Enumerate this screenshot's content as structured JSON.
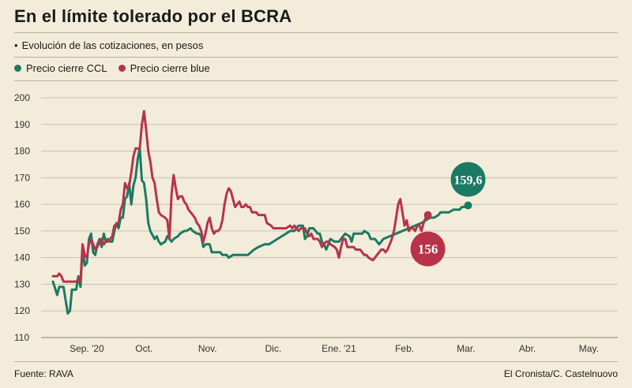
{
  "title": "En el límite tolerado por el BCRA",
  "subtitle": "Evolución de las cotizaciones, en pesos",
  "legend": [
    {
      "label": "Precio cierre CCL",
      "color": "#1b7a63"
    },
    {
      "label": "Precio cierre blue",
      "color": "#b8334a"
    }
  ],
  "footer": {
    "source": "Fuente: RAVA",
    "credit": "El Cronista/C. Castelnuovo"
  },
  "chart_data": {
    "type": "line",
    "title": "En el límite tolerado por el BCRA",
    "xlabel": "",
    "ylabel": "",
    "ylim": [
      110,
      200
    ],
    "yticks": [
      110,
      120,
      130,
      140,
      150,
      160,
      170,
      180,
      190,
      200
    ],
    "grid": true,
    "x_range": [
      0,
      251
    ],
    "month_labels": [
      {
        "label": "Sep. '20",
        "x": 16
      },
      {
        "label": "Oct.",
        "x": 43
      },
      {
        "label": "Nov.",
        "x": 73
      },
      {
        "label": "Dic.",
        "x": 104
      },
      {
        "label": "Ene. '21",
        "x": 135
      },
      {
        "label": "Feb.",
        "x": 166
      },
      {
        "label": "Mar.",
        "x": 195
      },
      {
        "label": "Abr.",
        "x": 224
      },
      {
        "label": "May.",
        "x": 253
      }
    ],
    "end_labels": {
      "ccl": "159,6",
      "blue": "156"
    },
    "series": [
      {
        "name": "Precio cierre CCL",
        "color": "#1b7a63",
        "points": [
          [
            0,
            131
          ],
          [
            2,
            126
          ],
          [
            3,
            129
          ],
          [
            5,
            129
          ],
          [
            6,
            124
          ],
          [
            7,
            119
          ],
          [
            8,
            120
          ],
          [
            9,
            128
          ],
          [
            11,
            128
          ],
          [
            12,
            133
          ],
          [
            13,
            129
          ],
          [
            14,
            144
          ],
          [
            15,
            137
          ],
          [
            16,
            138
          ],
          [
            17,
            147
          ],
          [
            18,
            149
          ],
          [
            19,
            142
          ],
          [
            20,
            141
          ],
          [
            21,
            145
          ],
          [
            22,
            147
          ],
          [
            23,
            144
          ],
          [
            24,
            149
          ],
          [
            25,
            146
          ],
          [
            26,
            147
          ],
          [
            27,
            146
          ],
          [
            28,
            146
          ],
          [
            29,
            150
          ],
          [
            30,
            153
          ],
          [
            31,
            151
          ],
          [
            32,
            155
          ],
          [
            33,
            155
          ],
          [
            34,
            162
          ],
          [
            35,
            163
          ],
          [
            36,
            168
          ],
          [
            37,
            160
          ],
          [
            38,
            167
          ],
          [
            39,
            170
          ],
          [
            40,
            177
          ],
          [
            41,
            181
          ],
          [
            42,
            169
          ],
          [
            43,
            168
          ],
          [
            44,
            162
          ],
          [
            45,
            153
          ],
          [
            46,
            150
          ],
          [
            48,
            147
          ],
          [
            49,
            148
          ],
          [
            50,
            146
          ],
          [
            51,
            145
          ],
          [
            53,
            146
          ],
          [
            54,
            148
          ],
          [
            56,
            146
          ],
          [
            57,
            147
          ],
          [
            59,
            148
          ],
          [
            60,
            149
          ],
          [
            62,
            150
          ],
          [
            63,
            150
          ],
          [
            65,
            151
          ],
          [
            66,
            150
          ],
          [
            68,
            149
          ],
          [
            69,
            149
          ],
          [
            70,
            148
          ],
          [
            71,
            144
          ],
          [
            72,
            145
          ],
          [
            74,
            145
          ],
          [
            75,
            142
          ],
          [
            77,
            142
          ],
          [
            79,
            142
          ],
          [
            80,
            141
          ],
          [
            82,
            141
          ],
          [
            83,
            140
          ],
          [
            85,
            141
          ],
          [
            90,
            141
          ],
          [
            92,
            141
          ],
          [
            95,
            143
          ],
          [
            97,
            144
          ],
          [
            100,
            145
          ],
          [
            102,
            145
          ],
          [
            104,
            146
          ],
          [
            106,
            147
          ],
          [
            108,
            148
          ],
          [
            110,
            149
          ],
          [
            112,
            150
          ],
          [
            114,
            150
          ],
          [
            115,
            151
          ],
          [
            116,
            152
          ],
          [
            118,
            152
          ],
          [
            119,
            147
          ],
          [
            120,
            148
          ],
          [
            121,
            151
          ],
          [
            123,
            151
          ],
          [
            125,
            149
          ],
          [
            126,
            149
          ],
          [
            127,
            146
          ],
          [
            128,
            145
          ],
          [
            129,
            143
          ],
          [
            130,
            145
          ],
          [
            131,
            147
          ],
          [
            133,
            146
          ],
          [
            135,
            146
          ],
          [
            137,
            148
          ],
          [
            138,
            149
          ],
          [
            140,
            148
          ],
          [
            141,
            146
          ],
          [
            142,
            149
          ],
          [
            144,
            149
          ],
          [
            146,
            149
          ],
          [
            147,
            150
          ],
          [
            149,
            149
          ],
          [
            150,
            147
          ],
          [
            152,
            147
          ],
          [
            154,
            145
          ],
          [
            155,
            146
          ],
          [
            156,
            147
          ],
          [
            159,
            148
          ],
          [
            162,
            149
          ],
          [
            165,
            150
          ],
          [
            168,
            151
          ],
          [
            171,
            152
          ],
          [
            174,
            153
          ],
          [
            176,
            154
          ],
          [
            178,
            155
          ],
          [
            180,
            155
          ],
          [
            182,
            156
          ],
          [
            183,
            157
          ],
          [
            185,
            157
          ],
          [
            187,
            157
          ],
          [
            189,
            158
          ],
          [
            190,
            158
          ],
          [
            192,
            158
          ],
          [
            193,
            159
          ],
          [
            195,
            159
          ],
          [
            196,
            159.6
          ]
        ]
      },
      {
        "name": "Precio cierre blue",
        "color": "#b8334a",
        "points": [
          [
            0,
            133
          ],
          [
            2,
            133
          ],
          [
            3,
            134
          ],
          [
            4,
            133
          ],
          [
            5,
            131
          ],
          [
            7,
            131
          ],
          [
            9,
            131
          ],
          [
            11,
            131
          ],
          [
            12,
            132
          ],
          [
            13,
            131
          ],
          [
            14,
            145
          ],
          [
            15,
            141
          ],
          [
            16,
            140
          ],
          [
            17,
            145
          ],
          [
            18,
            147
          ],
          [
            20,
            143
          ],
          [
            21,
            144
          ],
          [
            22,
            146
          ],
          [
            23,
            147
          ],
          [
            24,
            145
          ],
          [
            25,
            146
          ],
          [
            26,
            146
          ],
          [
            27,
            147
          ],
          [
            28,
            148
          ],
          [
            29,
            152
          ],
          [
            31,
            153
          ],
          [
            32,
            158
          ],
          [
            33,
            160
          ],
          [
            34,
            168
          ],
          [
            35,
            166
          ],
          [
            36,
            167
          ],
          [
            37,
            172
          ],
          [
            38,
            178
          ],
          [
            39,
            181
          ],
          [
            41,
            181
          ],
          [
            42,
            190
          ],
          [
            43,
            195
          ],
          [
            44,
            188
          ],
          [
            45,
            180
          ],
          [
            46,
            176
          ],
          [
            47,
            170
          ],
          [
            48,
            168
          ],
          [
            49,
            162
          ],
          [
            50,
            157
          ],
          [
            51,
            156
          ],
          [
            53,
            155
          ],
          [
            54,
            154
          ],
          [
            55,
            147
          ],
          [
            56,
            164
          ],
          [
            57,
            171
          ],
          [
            58,
            166
          ],
          [
            59,
            162
          ],
          [
            60,
            163
          ],
          [
            61,
            163
          ],
          [
            62,
            161
          ],
          [
            63,
            160
          ],
          [
            64,
            158
          ],
          [
            66,
            156
          ],
          [
            67,
            155
          ],
          [
            68,
            153
          ],
          [
            69,
            152
          ],
          [
            70,
            150
          ],
          [
            71,
            146
          ],
          [
            72,
            149
          ],
          [
            73,
            153
          ],
          [
            74,
            155
          ],
          [
            75,
            151
          ],
          [
            76,
            149
          ],
          [
            77,
            150
          ],
          [
            78,
            150
          ],
          [
            79,
            151
          ],
          [
            80,
            154
          ],
          [
            81,
            160
          ],
          [
            82,
            164
          ],
          [
            83,
            166
          ],
          [
            84,
            165
          ],
          [
            85,
            162
          ],
          [
            86,
            159
          ],
          [
            87,
            160
          ],
          [
            88,
            161
          ],
          [
            89,
            159
          ],
          [
            90,
            159
          ],
          [
            91,
            160
          ],
          [
            92,
            159
          ],
          [
            93,
            159
          ],
          [
            94,
            157
          ],
          [
            96,
            157
          ],
          [
            97,
            156
          ],
          [
            99,
            156
          ],
          [
            100,
            156
          ],
          [
            101,
            153
          ],
          [
            103,
            152
          ],
          [
            104,
            151
          ],
          [
            106,
            151
          ],
          [
            108,
            151
          ],
          [
            110,
            151
          ],
          [
            112,
            152
          ],
          [
            113,
            151
          ],
          [
            114,
            152
          ],
          [
            115,
            151
          ],
          [
            116,
            150
          ],
          [
            117,
            151
          ],
          [
            119,
            151
          ],
          [
            120,
            149
          ],
          [
            121,
            148
          ],
          [
            122,
            149
          ],
          [
            123,
            147
          ],
          [
            125,
            147
          ],
          [
            126,
            146
          ],
          [
            127,
            144
          ],
          [
            129,
            146
          ],
          [
            130,
            146
          ],
          [
            131,
            145
          ],
          [
            133,
            144
          ],
          [
            134,
            143
          ],
          [
            135,
            140
          ],
          [
            136,
            144
          ],
          [
            137,
            147
          ],
          [
            138,
            147
          ],
          [
            139,
            144
          ],
          [
            141,
            144
          ],
          [
            142,
            144
          ],
          [
            143,
            143
          ],
          [
            144,
            143
          ],
          [
            145,
            143
          ],
          [
            146,
            142
          ],
          [
            147,
            141
          ],
          [
            148,
            141
          ],
          [
            149,
            140
          ],
          [
            151,
            139
          ],
          [
            152,
            140
          ],
          [
            154,
            142
          ],
          [
            155,
            143
          ],
          [
            156,
            143
          ],
          [
            157,
            142
          ],
          [
            158,
            143
          ],
          [
            160,
            147
          ],
          [
            161,
            150
          ],
          [
            162,
            155
          ],
          [
            163,
            160
          ],
          [
            164,
            162
          ],
          [
            165,
            157
          ],
          [
            166,
            152
          ],
          [
            167,
            154
          ],
          [
            168,
            150
          ],
          [
            169,
            151
          ],
          [
            170,
            151
          ],
          [
            171,
            150
          ],
          [
            172,
            152
          ],
          [
            173,
            152
          ],
          [
            174,
            150
          ],
          [
            175,
            153
          ],
          [
            176,
            155
          ],
          [
            177,
            156
          ]
        ]
      }
    ]
  }
}
